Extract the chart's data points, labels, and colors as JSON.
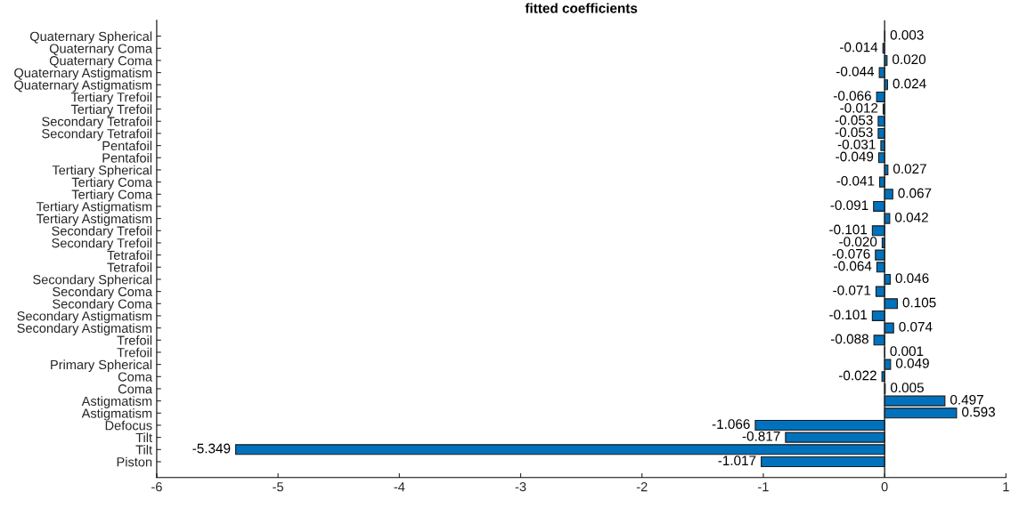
{
  "chart_data": {
    "type": "bar",
    "orientation": "horizontal",
    "title": "fitted coefficients",
    "categories": [
      "Quaternary Spherical",
      "Quaternary Coma",
      "Quaternary Coma",
      "Quaternary Astigmatism",
      "Quaternary Astigmatism",
      "Tertiary Trefoil",
      "Tertiary Trefoil",
      "Secondary Tetrafoil",
      "Secondary Tetrafoil",
      "Pentafoil",
      "Pentafoil",
      "Tertiary Spherical",
      "Tertiary Coma",
      "Tertiary Coma",
      "Tertiary Astigmatism",
      "Tertiary Astigmatism",
      "Secondary Trefoil",
      "Secondary Trefoil",
      "Tetrafoil",
      "Tetrafoil",
      "Secondary Spherical",
      "Secondary Coma",
      "Secondary Coma",
      "Secondary Astigmatism",
      "Secondary Astigmatism",
      "Trefoil",
      "Trefoil",
      "Primary Spherical",
      "Coma",
      "Coma",
      "Astigmatism",
      "Astigmatism",
      "Defocus",
      "Tilt",
      "Tilt",
      "Piston"
    ],
    "values": [
      0.003,
      -0.014,
      0.02,
      -0.044,
      0.024,
      -0.066,
      -0.012,
      -0.053,
      -0.053,
      -0.031,
      -0.049,
      0.027,
      -0.041,
      0.067,
      -0.091,
      0.042,
      -0.101,
      -0.02,
      -0.076,
      -0.064,
      0.046,
      -0.071,
      0.105,
      -0.101,
      0.074,
      -0.088,
      0.001,
      0.049,
      -0.022,
      0.005,
      0.497,
      0.593,
      -1.066,
      -0.817,
      -5.349,
      -1.017
    ],
    "value_labels": [
      "0.003",
      "-0.014",
      "0.020",
      "-0.044",
      "0.024",
      "-0.066",
      "-0.012",
      "-0.053",
      "-0.053",
      "-0.031",
      "-0.049",
      "0.027",
      "-0.041",
      "0.067",
      "-0.091",
      "0.042",
      "-0.101",
      "-0.020",
      "-0.076",
      "-0.064",
      "0.046",
      "-0.071",
      "0.105",
      "-0.101",
      "0.074",
      "-0.088",
      "0.001",
      "0.049",
      "-0.022",
      "0.005",
      "0.497",
      "0.593",
      "-1.066",
      "-0.817",
      "-5.349",
      "-1.017"
    ],
    "color": "#0072bd",
    "xlim": [
      -6,
      1
    ],
    "xticks": [
      -6,
      -5,
      -4,
      -3,
      -2,
      -1,
      0,
      1
    ],
    "ref_lines": [
      {
        "axis": "x",
        "value": 0,
        "label": null,
        "color": "#262626"
      }
    ],
    "grid": false,
    "legend": false
  }
}
